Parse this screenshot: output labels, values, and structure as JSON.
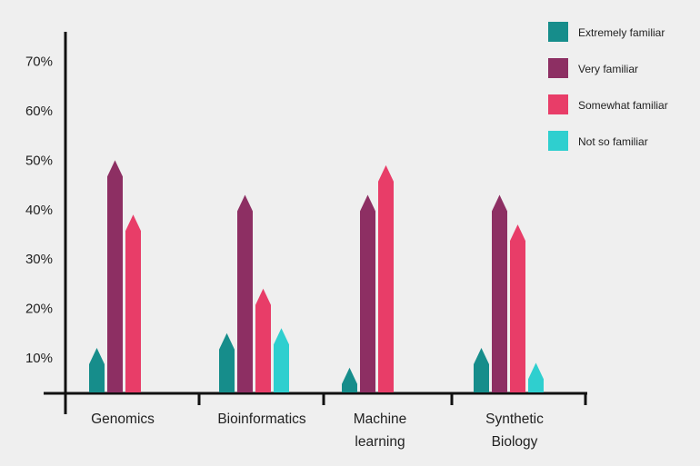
{
  "chart_data": {
    "type": "bar",
    "categories": [
      [
        "Genomics"
      ],
      [
        "Bioinformatics"
      ],
      [
        "Machine",
        "learning"
      ],
      [
        "Synthetic",
        "Biology"
      ]
    ],
    "series": [
      {
        "name": "Extremely familiar",
        "color": "#168d8b",
        "values": [
          12,
          15,
          8,
          12
        ]
      },
      {
        "name": "Very familiar",
        "color": "#8d2f63",
        "values": [
          50,
          43,
          43,
          43
        ]
      },
      {
        "name": "Somewhat familiar",
        "color": "#e83d68",
        "values": [
          39,
          24,
          49,
          37
        ]
      },
      {
        "name": "Not so familiar",
        "color": "#2fcfcf",
        "values": [
          0,
          16,
          0,
          9
        ]
      }
    ],
    "y_ticks": [
      10,
      20,
      30,
      40,
      50,
      60,
      70
    ],
    "tick_labels": [
      "10%",
      "20%",
      "30%",
      "40%",
      "50%",
      "60%",
      "70%"
    ],
    "ylim": [
      3,
      76
    ],
    "grid": false,
    "legend_position": "top-right",
    "bar_shape": "pencil-tip"
  }
}
